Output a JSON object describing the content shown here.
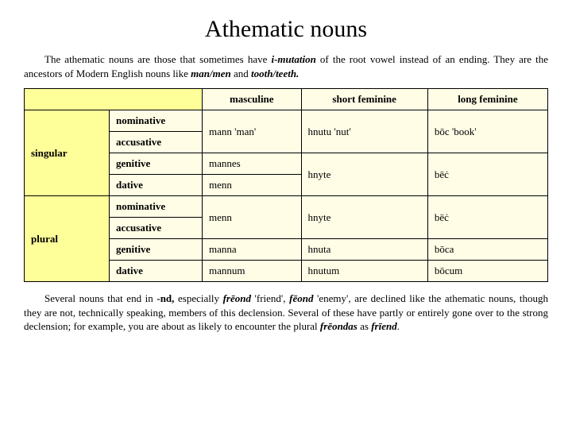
{
  "title": "Athematic nouns",
  "intro": {
    "part1": "The athematic nouns are those that sometimes have ",
    "imutation": "i-mutation",
    "part2": " of the root vowel instead of an ending. They are the ancestors of Modern English nouns like ",
    "manmen": "man/men",
    "part3": " and ",
    "toothteeth": "tooth/teeth.",
    "part4": ""
  },
  "headers": {
    "masc": "masculine",
    "shortfem": "short feminine",
    "longfem": "long feminine"
  },
  "numbers": {
    "singular": "singular",
    "plural": "plural"
  },
  "cases": {
    "nom": "nominative",
    "acc": "accusative",
    "gen": "genitive",
    "dat": "dative"
  },
  "data": {
    "sg_nomacc_masc": "mann 'man'",
    "sg_nomacc_sfem": "hnutu 'nut'",
    "sg_nomacc_lfem": "bōc 'book'",
    "sg_gen_masc": "mannes",
    "sg_dat_masc": "menn",
    "sg_gendat_sfem": "hnyte",
    "sg_gendat_lfem": "bēċ",
    "pl_nomacc_masc": "menn",
    "pl_nomacc_sfem": "hnyte",
    "pl_nomacc_lfem": "bēċ",
    "pl_gen_masc": "manna",
    "pl_gen_sfem": "hnuta",
    "pl_gen_lfem": "bōca",
    "pl_dat_masc": "mannum",
    "pl_dat_sfem": "hnutum",
    "pl_dat_lfem": "bōcum"
  },
  "outro": {
    "p1": "Several nouns that end in ",
    "nd": "-nd,",
    "p2": " especially ",
    "freond": "frēond",
    "p3": " 'friend', ",
    "feond": "fēond",
    "p4": " 'enemy', are declined like the athematic nouns, though they are not, technically speaking, members of this declension. Several of these have partly or entirely gone over to the strong declension; for example, you are about as likely to encounter the plural ",
    "freondas": "frēondas",
    "p5": " as ",
    "friend": "frīend",
    "p6": "."
  }
}
